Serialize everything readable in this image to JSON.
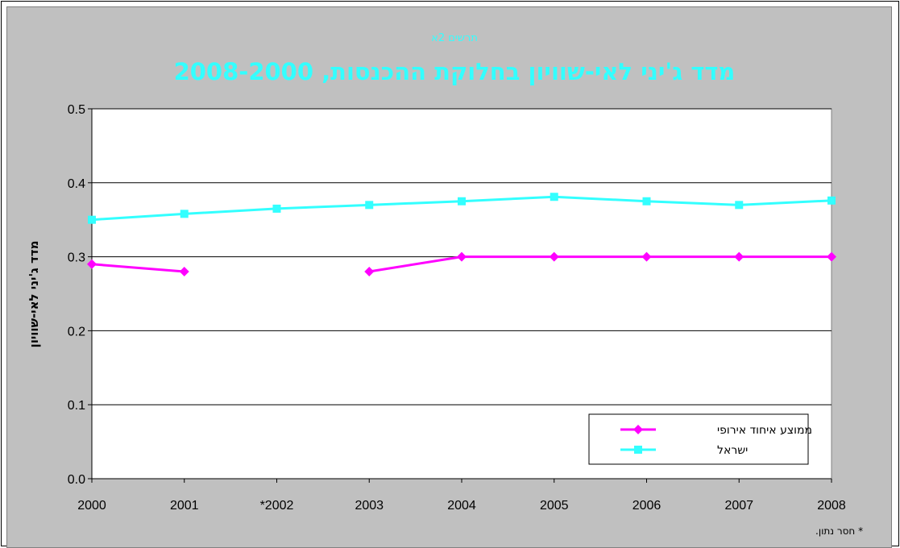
{
  "chart_data": {
    "type": "line",
    "subtitle": "תרשים 2א",
    "title": "מדד ג'יני לאי-שוויון בחלוקת ההכנסות, 2008-2000",
    "xlabel": "",
    "ylabel": "מדד ג'יני לאי-שוויון",
    "categories": [
      "2000",
      "2001",
      "*2002",
      "2003",
      "2004",
      "2005",
      "2006",
      "2007",
      "2008"
    ],
    "yticks": [
      "0.0",
      "0.1",
      "0.2",
      "0.3",
      "0.4",
      "0.5"
    ],
    "ylim": [
      0,
      0.5
    ],
    "grid": true,
    "legend_position": "bottom-right",
    "footnote": "* חסר נתון.",
    "series": [
      {
        "name": "ממוצע איחוד אירופי",
        "color": "#ff00ff",
        "marker": "diamond",
        "values": [
          0.29,
          0.28,
          null,
          0.28,
          0.3,
          0.3,
          0.3,
          0.3,
          0.3
        ]
      },
      {
        "name": "ישראל",
        "color": "#33ffff",
        "marker": "square",
        "values": [
          0.35,
          0.358,
          0.365,
          0.37,
          0.375,
          0.381,
          0.375,
          0.37,
          0.376
        ]
      }
    ]
  }
}
